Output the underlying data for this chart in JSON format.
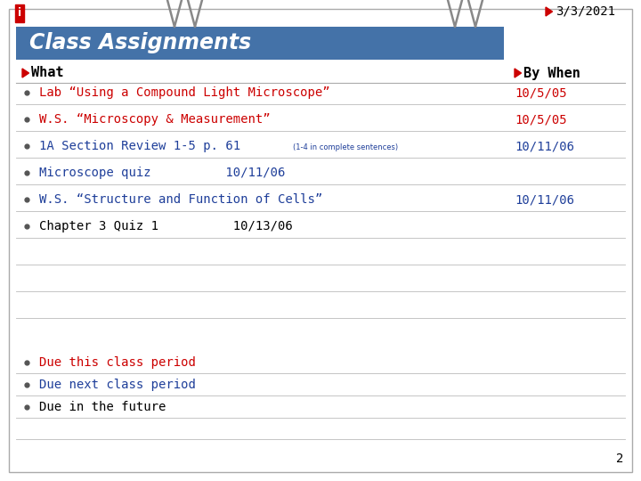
{
  "title": "Class Assignments",
  "date": "3/3/2021",
  "page_num": "2",
  "bg_color": "#FFFFFF",
  "header_bg": "#4472A8",
  "header_text": "Class Assignments",
  "header_text_color": "#FFFFFF",
  "col1_label": "What",
  "col2_label": "By When",
  "rows": [
    {
      "text": "Lab “Using a Compound Light Microscope”",
      "date": "10/5/05",
      "color": "#CC0000",
      "date_color": "#CC0000"
    },
    {
      "text": "W.S. “Microscopy & Measurement”",
      "date": "10/5/05",
      "color": "#CC0000",
      "date_color": "#CC0000"
    },
    {
      "text": "1A Section Review 1-5 p. 61",
      "sub": "(1-4 in complete sentences)",
      "date": "10/11/06",
      "color": "#1F3F9A",
      "date_color": "#1F3F9A"
    },
    {
      "text": "Microscope quiz          10/11/06",
      "date": "",
      "color": "#1F3F9A",
      "date_color": "#1F3F9A"
    },
    {
      "text": "W.S. “Structure and Function of Cells”",
      "date": "10/11/06",
      "color": "#1F3F9A",
      "date_color": "#1F3F9A"
    },
    {
      "text": "Chapter 3 Quiz 1          10/13/06",
      "date": "",
      "color": "#000000",
      "date_color": "#000000"
    }
  ],
  "legend": [
    {
      "text": "Due this class period",
      "color": "#CC0000"
    },
    {
      "text": "Due next class period",
      "color": "#1F3F9A"
    },
    {
      "text": "Due in the future",
      "color": "#000000"
    }
  ],
  "arrow_color": "#CC0000",
  "line_color": "#BBBBBB",
  "line_color_dark": "#AAAAAA"
}
